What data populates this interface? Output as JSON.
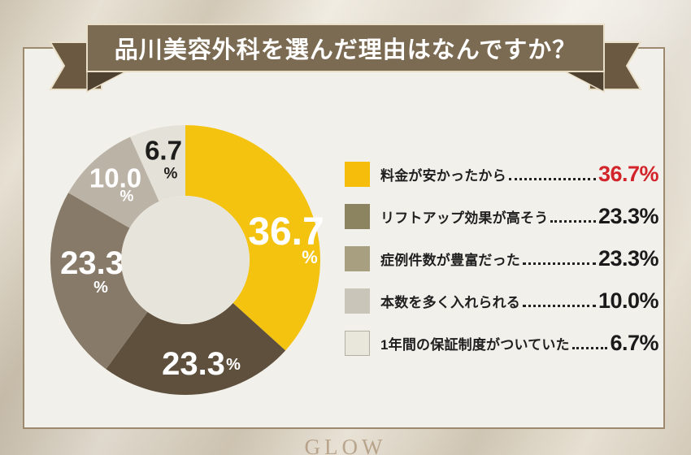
{
  "title": {
    "banner_text": "品川美容外科を選んだ理由はなんですか？"
  },
  "watermark": {
    "text": "GLOW"
  },
  "colors": {
    "banner": "#7c6b53",
    "banner_tail": "#6b5941",
    "banner_fold": "#4e4130",
    "banner_border": "#eadfc8",
    "panel_bg": "#f2f0ea",
    "panel_border": "#9d8a6e",
    "donut_hole": "#e7e4dc",
    "value_highlight": "#d2252b",
    "value_default": "#1a1a1a"
  },
  "chart_data": {
    "type": "pie",
    "donut": true,
    "title": "品川美容外科を選んだ理由はなんですか？",
    "unit": "%",
    "start_angle_deg": 0,
    "direction": "clockwise",
    "segments": [
      {
        "label": "料金が安かったから",
        "value": 36.7,
        "color": "#f4c30f",
        "label_color": "#ffffff"
      },
      {
        "label": "リフトアップ効果が高そう",
        "value": 23.3,
        "color": "#5e503d",
        "label_color": "#ffffff"
      },
      {
        "label": "症例件数が豊富だった",
        "value": 23.3,
        "color": "#877a69",
        "label_color": "#ffffff"
      },
      {
        "label": "本数を多く入れられる",
        "value": 10.0,
        "color": "#bcb3a7",
        "label_color": "#ffffff"
      },
      {
        "label": "1年間の保証制度がついていた",
        "value": 6.7,
        "color": "#e4e1d8",
        "label_color": "#1d1d1b"
      }
    ]
  },
  "legend": {
    "items": [
      {
        "label": "料金が安かったから",
        "value": "36.7%",
        "swatch": "#f6be0b",
        "value_color": "#d2252b"
      },
      {
        "label": "リフトアップ効果が高そう",
        "value": "23.3%",
        "swatch": "#8c8360",
        "value_color": "#1a1a1a"
      },
      {
        "label": "症例件数が豊富だった",
        "value": "23.3%",
        "swatch": "#a89f81",
        "value_color": "#1a1a1a"
      },
      {
        "label": "本数を多く入れられる",
        "value": "10.0%",
        "swatch": "#c9c5b8",
        "value_color": "#1a1a1a"
      },
      {
        "label": "1年間の保証制度がついていた",
        "value": "6.7%",
        "swatch": "#e9e6db",
        "swatch_border": "#b3afa3",
        "value_color": "#1a1a1a"
      }
    ]
  }
}
